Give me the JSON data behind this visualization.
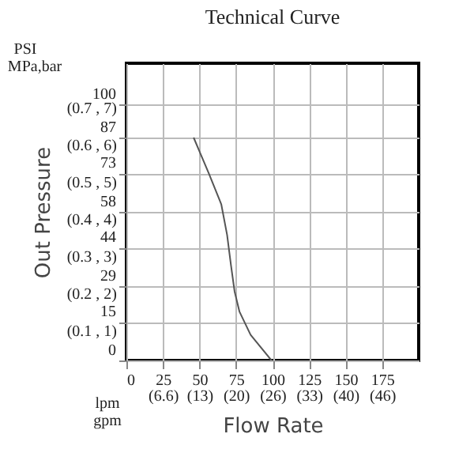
{
  "chart_data": {
    "type": "line",
    "title": "Technical Curve",
    "xlabel": "Flow Rate",
    "ylabel": "Out Pressure",
    "x": [
      46,
      56.4,
      64.9,
      68.9,
      71.6,
      74,
      77.4,
      85,
      99.3
    ],
    "series": [
      {
        "color": "#555555",
        "values": [
          87,
          73,
          61,
          49,
          37,
          27,
          19,
          10,
          0
        ]
      }
    ],
    "xlim": [
      0,
      200
    ],
    "ylim": [
      0,
      116
    ],
    "xticks": [
      0,
      25,
      50,
      75,
      100,
      125,
      150,
      175
    ],
    "x2lim": [
      0,
      52.8
    ],
    "x2ticks": [
      {
        "value": 6.6,
        "label": "(6.6)"
      },
      {
        "value": 13.2,
        "label": "(13)"
      },
      {
        "value": 19.8,
        "label": "(20)"
      },
      {
        "value": 26.4,
        "label": "(26)"
      },
      {
        "value": 33,
        "label": "(33)"
      },
      {
        "value": 39.6,
        "label": "(40)"
      },
      {
        "value": 46.2,
        "label": "(46)"
      }
    ],
    "yticks": [
      0,
      15,
      29,
      44,
      58,
      73,
      87,
      100
    ],
    "annotations": [
      "PSI",
      "MPa,bar",
      "lpm",
      "gpm",
      "(0.1 , 1)",
      "(0.2 , 2)",
      "(0.3 , 3)",
      "(0.4 , 4)",
      "(0.5 , 5)",
      "(0.6 , 6)",
      "(0.7 , 7)"
    ],
    "grid": true,
    "marker": "none",
    "line_style": "solid",
    "legend": false
  }
}
